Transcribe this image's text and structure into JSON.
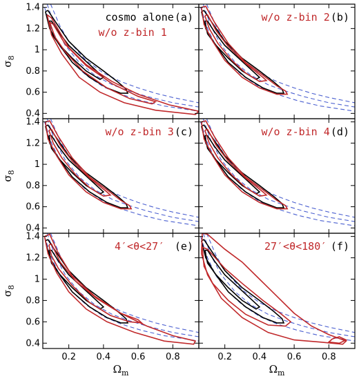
{
  "chart_data": {
    "type": "contour",
    "layout": "3x2 grid of panels",
    "x_label": "Ω",
    "x_label_sub": "m",
    "y_label": "σ",
    "y_label_sub": "8",
    "xlim": [
      0.05,
      0.95
    ],
    "ylim": [
      0.35,
      1.43
    ],
    "x_ticks": [
      0.2,
      0.4,
      0.6,
      0.8
    ],
    "y_ticks": [
      0.4,
      0.6,
      0.8,
      1,
      1.2,
      1.4
    ],
    "x_tick_labels": [
      "0.2",
      "0.4",
      "0.6",
      "0.8"
    ],
    "y_tick_labels": [
      "0.4",
      "0.6",
      "0.8",
      "1",
      "1.2",
      "1.4"
    ],
    "colors": {
      "reference": "#000000",
      "variant": "#c0282a",
      "dashed": "#4a5fd0"
    },
    "panels": [
      {
        "tag": "(a)",
        "text": "cosmo alone",
        "text_color": "#000000",
        "subtext": "w/o z-bin 1",
        "subtext_color": "#c0282a",
        "variant": "zbin1"
      },
      {
        "tag": "(b)",
        "text": "w/o z-bin 2",
        "text_color": "#c0282a",
        "subtext": "",
        "subtext_color": "#c0282a",
        "variant": "zbin"
      },
      {
        "tag": "(c)",
        "text": "w/o z-bin 3",
        "text_color": "#c0282a",
        "subtext": "",
        "subtext_color": "#c0282a",
        "variant": "zbin"
      },
      {
        "tag": "(d)",
        "text": "w/o z-bin 4",
        "text_color": "#c0282a",
        "subtext": "",
        "subtext_color": "#c0282a",
        "variant": "zbin"
      },
      {
        "tag": "(e)",
        "text": "4′<θ<27′",
        "text_color": "#c0282a",
        "subtext": "",
        "subtext_color": "#c0282a",
        "variant": "smalltheta"
      },
      {
        "tag": "(f)",
        "text": "27′<θ<180′",
        "text_color": "#c0282a",
        "subtext": "",
        "subtext_color": "#c0282a",
        "variant": "largetheta"
      }
    ],
    "series": {
      "dashed_bands": {
        "lines": [
          [
            [
              0.095,
              1.43
            ],
            [
              0.15,
              1.22
            ],
            [
              0.2,
              1.08
            ],
            [
              0.3,
              0.9
            ],
            [
              0.4,
              0.78
            ],
            [
              0.5,
              0.7
            ],
            [
              0.6,
              0.64
            ],
            [
              0.7,
              0.59
            ],
            [
              0.8,
              0.55
            ],
            [
              0.95,
              0.5
            ]
          ],
          [
            [
              0.075,
              1.43
            ],
            [
              0.12,
              1.22
            ],
            [
              0.18,
              1.04
            ],
            [
              0.26,
              0.88
            ],
            [
              0.35,
              0.76
            ],
            [
              0.45,
              0.67
            ],
            [
              0.55,
              0.61
            ],
            [
              0.65,
              0.56
            ],
            [
              0.8,
              0.5
            ],
            [
              0.95,
              0.46
            ]
          ],
          [
            [
              0.06,
              1.4
            ],
            [
              0.1,
              1.2
            ],
            [
              0.15,
              1.03
            ],
            [
              0.22,
              0.88
            ],
            [
              0.3,
              0.76
            ],
            [
              0.4,
              0.65
            ],
            [
              0.5,
              0.58
            ],
            [
              0.62,
              0.52
            ],
            [
              0.75,
              0.47
            ],
            [
              0.95,
              0.42
            ]
          ]
        ]
      },
      "reference_contours": [
        [
          [
            0.065,
            1.36
          ],
          [
            0.08,
            1.37
          ],
          [
            0.12,
            1.27
          ],
          [
            0.2,
            1.08
          ],
          [
            0.3,
            0.92
          ],
          [
            0.4,
            0.8
          ],
          [
            0.48,
            0.7
          ],
          [
            0.53,
            0.63
          ],
          [
            0.54,
            0.59
          ],
          [
            0.5,
            0.59
          ],
          [
            0.42,
            0.64
          ],
          [
            0.32,
            0.74
          ],
          [
            0.22,
            0.88
          ],
          [
            0.14,
            1.06
          ],
          [
            0.09,
            1.2
          ],
          [
            0.065,
            1.36
          ]
        ],
        [
          [
            0.085,
            1.27
          ],
          [
            0.1,
            1.27
          ],
          [
            0.14,
            1.17
          ],
          [
            0.2,
            1.04
          ],
          [
            0.28,
            0.92
          ],
          [
            0.36,
            0.8
          ],
          [
            0.4,
            0.74
          ],
          [
            0.38,
            0.72
          ],
          [
            0.3,
            0.8
          ],
          [
            0.22,
            0.92
          ],
          [
            0.15,
            1.04
          ],
          [
            0.1,
            1.15
          ],
          [
            0.085,
            1.27
          ]
        ]
      ],
      "variant_contours": {
        "zbin1": [
          [
            [
              0.075,
              1.33
            ],
            [
              0.1,
              1.3
            ],
            [
              0.2,
              1.02
            ],
            [
              0.3,
              0.86
            ],
            [
              0.45,
              0.7
            ],
            [
              0.6,
              0.58
            ],
            [
              0.78,
              0.48
            ],
            [
              0.95,
              0.42
            ],
            [
              0.93,
              0.39
            ],
            [
              0.7,
              0.43
            ],
            [
              0.52,
              0.5
            ],
            [
              0.38,
              0.6
            ],
            [
              0.26,
              0.74
            ],
            [
              0.16,
              0.96
            ],
            [
              0.1,
              1.14
            ],
            [
              0.075,
              1.33
            ]
          ],
          [
            [
              0.09,
              1.26
            ],
            [
              0.11,
              1.24
            ],
            [
              0.18,
              1.05
            ],
            [
              0.3,
              0.85
            ],
            [
              0.45,
              0.68
            ],
            [
              0.6,
              0.56
            ],
            [
              0.7,
              0.51
            ],
            [
              0.68,
              0.49
            ],
            [
              0.55,
              0.54
            ],
            [
              0.42,
              0.64
            ],
            [
              0.28,
              0.8
            ],
            [
              0.18,
              0.98
            ],
            [
              0.12,
              1.12
            ],
            [
              0.09,
              1.26
            ]
          ]
        ],
        "zbin": [
          [
            [
              0.065,
              1.4
            ],
            [
              0.09,
              1.41
            ],
            [
              0.14,
              1.26
            ],
            [
              0.22,
              1.06
            ],
            [
              0.32,
              0.88
            ],
            [
              0.42,
              0.76
            ],
            [
              0.5,
              0.66
            ],
            [
              0.55,
              0.61
            ],
            [
              0.56,
              0.58
            ],
            [
              0.5,
              0.58
            ],
            [
              0.4,
              0.64
            ],
            [
              0.3,
              0.74
            ],
            [
              0.2,
              0.9
            ],
            [
              0.13,
              1.08
            ],
            [
              0.08,
              1.24
            ],
            [
              0.065,
              1.4
            ]
          ],
          [
            [
              0.085,
              1.32
            ],
            [
              0.1,
              1.33
            ],
            [
              0.15,
              1.18
            ],
            [
              0.22,
              1.03
            ],
            [
              0.32,
              0.87
            ],
            [
              0.42,
              0.74
            ],
            [
              0.44,
              0.71
            ],
            [
              0.4,
              0.7
            ],
            [
              0.32,
              0.78
            ],
            [
              0.24,
              0.9
            ],
            [
              0.16,
              1.06
            ],
            [
              0.11,
              1.2
            ],
            [
              0.085,
              1.32
            ]
          ]
        ],
        "smalltheta": [
          [
            [
              0.06,
              1.4
            ],
            [
              0.09,
              1.42
            ],
            [
              0.14,
              1.24
            ],
            [
              0.22,
              1.03
            ],
            [
              0.35,
              0.84
            ],
            [
              0.5,
              0.68
            ],
            [
              0.65,
              0.56
            ],
            [
              0.8,
              0.47
            ],
            [
              0.93,
              0.42
            ],
            [
              0.92,
              0.39
            ],
            [
              0.75,
              0.42
            ],
            [
              0.58,
              0.5
            ],
            [
              0.42,
              0.6
            ],
            [
              0.3,
              0.72
            ],
            [
              0.2,
              0.88
            ],
            [
              0.13,
              1.06
            ],
            [
              0.08,
              1.24
            ],
            [
              0.06,
              1.4
            ]
          ],
          [
            [
              0.085,
              1.32
            ],
            [
              0.1,
              1.33
            ],
            [
              0.15,
              1.16
            ],
            [
              0.24,
              0.98
            ],
            [
              0.36,
              0.82
            ],
            [
              0.5,
              0.68
            ],
            [
              0.6,
              0.62
            ],
            [
              0.62,
              0.59
            ],
            [
              0.55,
              0.6
            ],
            [
              0.44,
              0.66
            ],
            [
              0.32,
              0.78
            ],
            [
              0.22,
              0.94
            ],
            [
              0.14,
              1.1
            ],
            [
              0.1,
              1.22
            ],
            [
              0.085,
              1.32
            ]
          ]
        ],
        "largetheta": [
          [
            [
              0.07,
              1.43
            ],
            [
              0.1,
              1.42
            ],
            [
              0.2,
              1.28
            ],
            [
              0.3,
              1.16
            ],
            [
              0.4,
              1.0
            ],
            [
              0.5,
              0.84
            ],
            [
              0.6,
              0.68
            ],
            [
              0.7,
              0.56
            ],
            [
              0.8,
              0.48
            ],
            [
              0.9,
              0.42
            ],
            [
              0.88,
              0.39
            ],
            [
              0.75,
              0.41
            ],
            [
              0.6,
              0.43
            ],
            [
              0.45,
              0.5
            ],
            [
              0.3,
              0.64
            ],
            [
              0.18,
              0.82
            ],
            [
              0.1,
              1.04
            ],
            [
              0.065,
              1.24
            ],
            [
              0.07,
              1.43
            ]
          ],
          [
            [
              0.07,
              1.3
            ],
            [
              0.1,
              1.28
            ],
            [
              0.2,
              1.1
            ],
            [
              0.3,
              0.96
            ],
            [
              0.42,
              0.8
            ],
            [
              0.52,
              0.68
            ],
            [
              0.58,
              0.6
            ],
            [
              0.55,
              0.56
            ],
            [
              0.45,
              0.57
            ],
            [
              0.32,
              0.67
            ],
            [
              0.22,
              0.8
            ],
            [
              0.13,
              0.96
            ],
            [
              0.08,
              1.12
            ],
            [
              0.07,
              1.3
            ]
          ],
          [
            [
              0.82,
              0.44
            ],
            [
              0.86,
              0.46
            ],
            [
              0.9,
              0.43
            ],
            [
              0.86,
              0.4
            ],
            [
              0.8,
              0.41
            ],
            [
              0.82,
              0.44
            ]
          ]
        ]
      }
    }
  }
}
